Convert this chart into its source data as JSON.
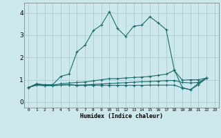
{
  "xlabel": "Humidex (Indice chaleur)",
  "bg_color": "#cce8ec",
  "grid_color": "#aaccd4",
  "line_color": "#1a6b6b",
  "xlim": [
    -0.5,
    23.5
  ],
  "ylim": [
    -0.25,
    4.45
  ],
  "xticks": [
    0,
    1,
    2,
    3,
    4,
    5,
    6,
    7,
    8,
    9,
    10,
    11,
    12,
    13,
    14,
    15,
    16,
    17,
    18,
    19,
    20,
    21,
    22,
    23
  ],
  "yticks": [
    0,
    1,
    2,
    3,
    4
  ],
  "series": [
    [
      0.65,
      0.82,
      0.78,
      0.78,
      1.15,
      1.25,
      2.25,
      2.55,
      3.2,
      3.45,
      4.05,
      3.3,
      2.95,
      3.4,
      3.45,
      3.82,
      3.55,
      3.25,
      1.45,
      0.65,
      0.55,
      0.85,
      1.08,
      null
    ],
    [
      0.65,
      0.8,
      0.76,
      0.76,
      0.82,
      0.85,
      0.88,
      0.9,
      0.95,
      1.0,
      1.05,
      1.05,
      1.08,
      1.1,
      1.12,
      1.15,
      1.2,
      1.25,
      1.42,
      0.98,
      1.0,
      1.0,
      1.08,
      null
    ],
    [
      0.65,
      0.76,
      0.74,
      0.74,
      0.76,
      0.78,
      0.74,
      0.75,
      0.75,
      0.75,
      0.75,
      0.75,
      0.75,
      0.75,
      0.75,
      0.76,
      0.76,
      0.76,
      0.76,
      0.63,
      0.55,
      0.78,
      1.08,
      null
    ],
    [
      0.65,
      0.76,
      0.74,
      0.74,
      0.76,
      0.78,
      0.76,
      0.77,
      0.79,
      0.81,
      0.83,
      0.85,
      0.87,
      0.89,
      0.91,
      0.92,
      0.94,
      0.96,
      0.97,
      0.88,
      0.86,
      0.88,
      1.08,
      null
    ]
  ]
}
